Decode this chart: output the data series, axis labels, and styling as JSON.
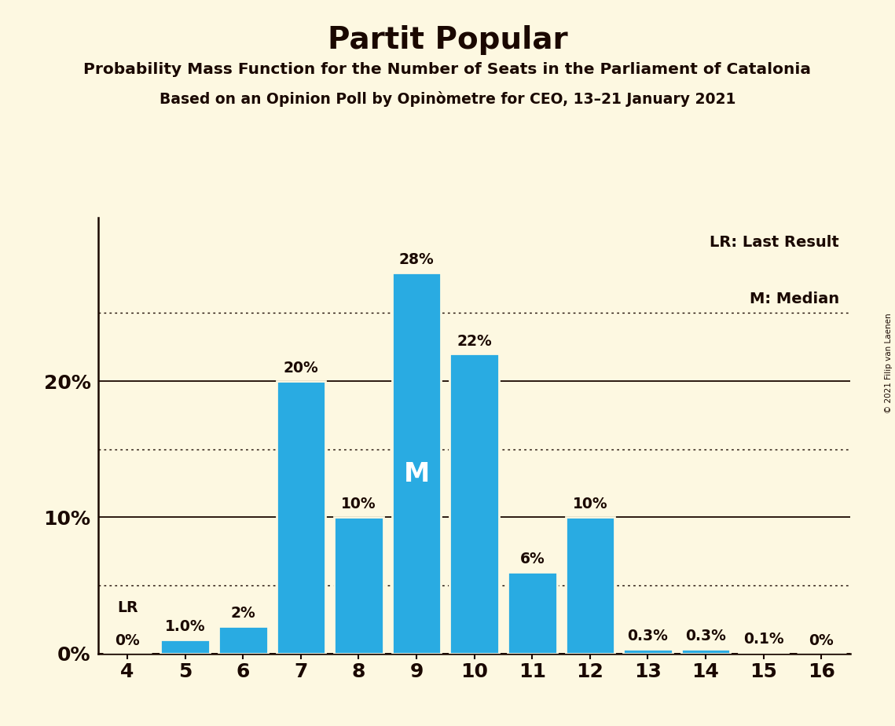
{
  "title": "Partit Popular",
  "subtitle1": "Probability Mass Function for the Number of Seats in the Parliament of Catalonia",
  "subtitle2": "Based on an Opinion Poll by Opinòmetre for CEO, 13–21 January 2021",
  "copyright": "© 2021 Filip van Laenen",
  "seats": [
    4,
    5,
    6,
    7,
    8,
    9,
    10,
    11,
    12,
    13,
    14,
    15,
    16
  ],
  "probabilities": [
    0.0,
    1.0,
    2.0,
    20.0,
    10.0,
    28.0,
    22.0,
    6.0,
    10.0,
    0.3,
    0.3,
    0.1,
    0.0
  ],
  "bar_color": "#29abe2",
  "bar_edge_color": "#fdf8e1",
  "background_color": "#fdf8e1",
  "text_color": "#1a0800",
  "legend_lr": "LR: Last Result",
  "legend_m": "M: Median",
  "lr_seat": 4,
  "median_seat": 9,
  "yticks": [
    0,
    10,
    20
  ],
  "dotted_lines": [
    5,
    15,
    25
  ],
  "ylim": [
    0,
    32
  ],
  "bar_labels": [
    "0%",
    "1.0%",
    "2%",
    "20%",
    "10%",
    "28%",
    "22%",
    "6%",
    "10%",
    "0.3%",
    "0.3%",
    "0.1%",
    "0%"
  ]
}
